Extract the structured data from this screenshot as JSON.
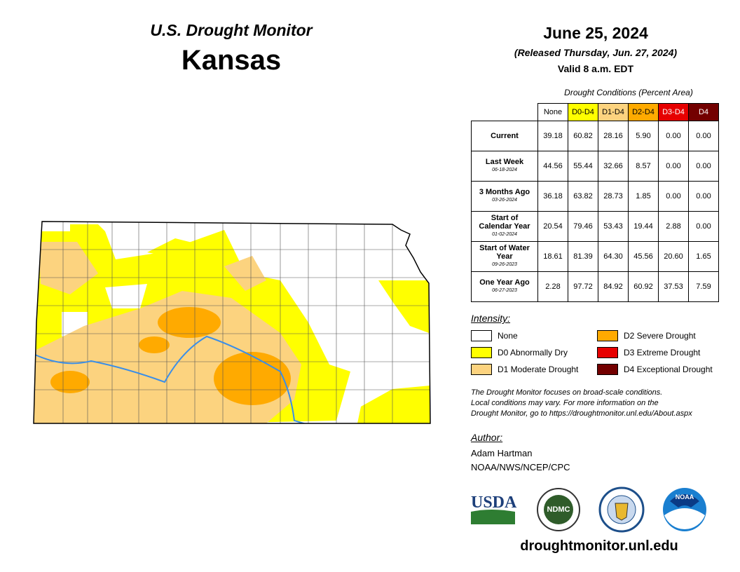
{
  "header": {
    "title": "U.S. Drought Monitor",
    "state": "Kansas",
    "date": "June 25, 2024",
    "released": "(Released Thursday, Jun. 27, 2024)",
    "valid": "Valid 8 a.m. EDT"
  },
  "table": {
    "caption": "Drought Conditions (Percent Area)",
    "columns": [
      {
        "label": "None",
        "color": "#ffffff",
        "text": "#000000"
      },
      {
        "label": "D0-D4",
        "color": "#ffff00",
        "text": "#000000"
      },
      {
        "label": "D1-D4",
        "color": "#fcd37f",
        "text": "#000000"
      },
      {
        "label": "D2-D4",
        "color": "#ffaa00",
        "text": "#000000"
      },
      {
        "label": "D3-D4",
        "color": "#e60000",
        "text": "#ffffff"
      },
      {
        "label": "D4",
        "color": "#730000",
        "text": "#ffffff"
      }
    ],
    "rows": [
      {
        "label": "Current",
        "values": [
          "39.18",
          "60.82",
          "28.16",
          "5.90",
          "0.00",
          "0.00"
        ]
      },
      {
        "label": "Last Week",
        "date": "06-18-2024",
        "values": [
          "44.56",
          "55.44",
          "32.66",
          "8.57",
          "0.00",
          "0.00"
        ]
      },
      {
        "label": "3 Months Ago",
        "date": "03-26-2024",
        "values": [
          "36.18",
          "63.82",
          "28.73",
          "1.85",
          "0.00",
          "0.00"
        ]
      },
      {
        "label": "Start of Calendar Year",
        "date": "01-02-2024",
        "values": [
          "20.54",
          "79.46",
          "53.43",
          "19.44",
          "2.88",
          "0.00"
        ]
      },
      {
        "label": "Start of Water Year",
        "date": "09-26-2023",
        "values": [
          "18.61",
          "81.39",
          "64.30",
          "45.56",
          "20.60",
          "1.65"
        ]
      },
      {
        "label": "One Year Ago",
        "date": "06-27-2023",
        "values": [
          "2.28",
          "97.72",
          "84.92",
          "60.92",
          "37.53",
          "7.59"
        ]
      }
    ]
  },
  "legend": {
    "title": "Intensity:",
    "items": [
      {
        "label": "None",
        "color": "#ffffff"
      },
      {
        "label": "D0 Abnormally Dry",
        "color": "#ffff00"
      },
      {
        "label": "D1 Moderate Drought",
        "color": "#fcd37f"
      },
      {
        "label": "D2 Severe Drought",
        "color": "#ffaa00"
      },
      {
        "label": "D3 Extreme Drought",
        "color": "#e60000"
      },
      {
        "label": "D4 Exceptional Drought",
        "color": "#730000"
      }
    ]
  },
  "note": [
    "The Drought Monitor focuses on broad-scale conditions.",
    "Local conditions may vary. For more information on the",
    "Drought Monitor, go to https://droughtmonitor.unl.edu/About.aspx"
  ],
  "author": {
    "heading": "Author:",
    "lines": [
      "Adam Hartman",
      "NOAA/NWS/NCEP/CPC"
    ]
  },
  "logos": {
    "usda": "USDA",
    "ndmc": "NDMC",
    "noaa": "NOAA"
  },
  "url": "droughtmonitor.unl.edu"
}
